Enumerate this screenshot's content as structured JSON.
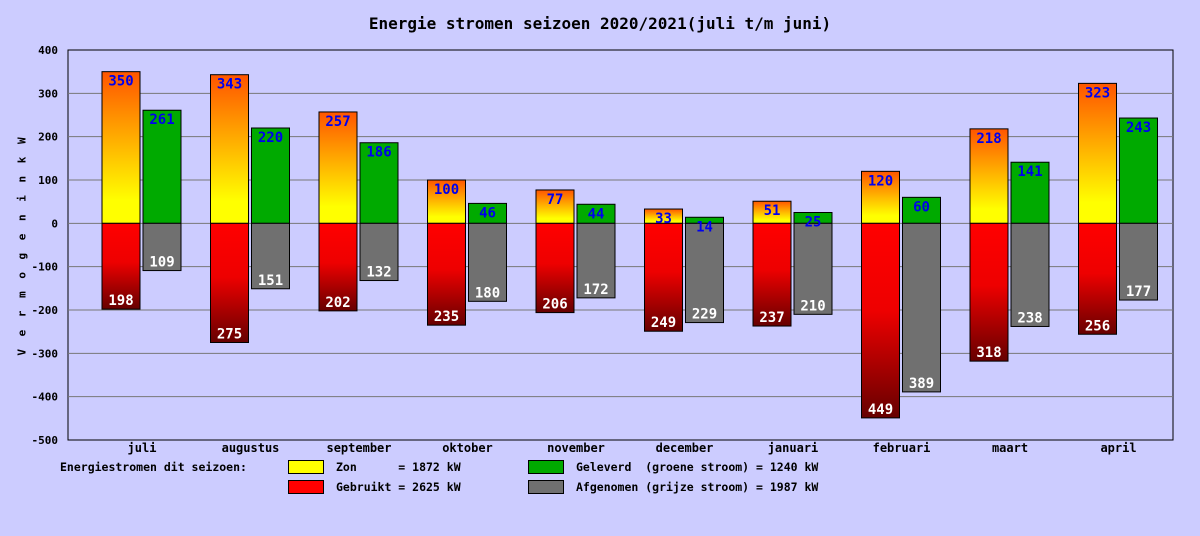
{
  "chart_data": {
    "type": "bar",
    "title": "Energie stromen seizoen 2020/2021(juli t/m juni)",
    "ylabel": "V e r m o g e n   i n   k W",
    "ylim": [
      -500,
      400
    ],
    "yticks": [
      400,
      300,
      200,
      100,
      0,
      -100,
      -200,
      -300,
      -400,
      -500
    ],
    "yticks_labels": [
      "400",
      "300",
      "200",
      "100",
      "0",
      "-100",
      "-200",
      "-300",
      "-400",
      "-500"
    ],
    "grid": true,
    "categories": [
      "juli",
      "augustus",
      "september",
      "oktober",
      "november",
      "december",
      "januari",
      "februari",
      "maart",
      "april"
    ],
    "series": [
      {
        "name": "Zon",
        "values": [
          350,
          343,
          257,
          100,
          77,
          33,
          51,
          120,
          218,
          323
        ],
        "labels": [
          "350",
          "343",
          "257",
          "100",
          "77",
          "33",
          "51",
          "120",
          "218",
          "323"
        ]
      },
      {
        "name": "Geleverd  (groene stroom)",
        "values": [
          261,
          220,
          186,
          46,
          44,
          14,
          25,
          60,
          141,
          243
        ],
        "labels": [
          "261",
          "220",
          "186",
          "46",
          "44",
          "14",
          "25",
          "60",
          "141",
          "243"
        ]
      },
      {
        "name": "Gebruikt",
        "values": [
          -198,
          -275,
          -202,
          -235,
          -206,
          -249,
          -237,
          -449,
          -318,
          -256
        ],
        "labels": [
          "198",
          "275",
          "202",
          "235",
          "206",
          "249",
          "237",
          "449",
          "318",
          "256"
        ]
      },
      {
        "name": "Afgenomen (grijze stroom)",
        "values": [
          -109,
          -151,
          -132,
          -180,
          -172,
          -229,
          -210,
          -389,
          -238,
          -177
        ],
        "labels": [
          "109",
          "151",
          "132",
          "180",
          "172",
          "229",
          "210",
          "389",
          "238",
          "177"
        ]
      }
    ],
    "colors": {
      "zon": "#ffff00",
      "zon_high": "#ff6600",
      "geleverd": "#00aa00",
      "gebruikt": "#ff0000",
      "gebruikt_low": "#880000",
      "afgenomen": "#707070",
      "background": "#ccccff",
      "label_top": "#0000ee",
      "label_bottom": "#ffffff"
    }
  },
  "legend": {
    "caption": "Energiestromen dit seizoen:",
    "items": [
      {
        "key": "zon",
        "text": "Zon      = 1872 kW"
      },
      {
        "key": "gebruikt",
        "text": "Gebruikt = 2625 kW"
      },
      {
        "key": "geleverd",
        "text": "Geleverd  (groene stroom) = 1240 kW"
      },
      {
        "key": "afgenomen",
        "text": "Afgenomen (grijze stroom) = 1987 kW"
      }
    ]
  }
}
